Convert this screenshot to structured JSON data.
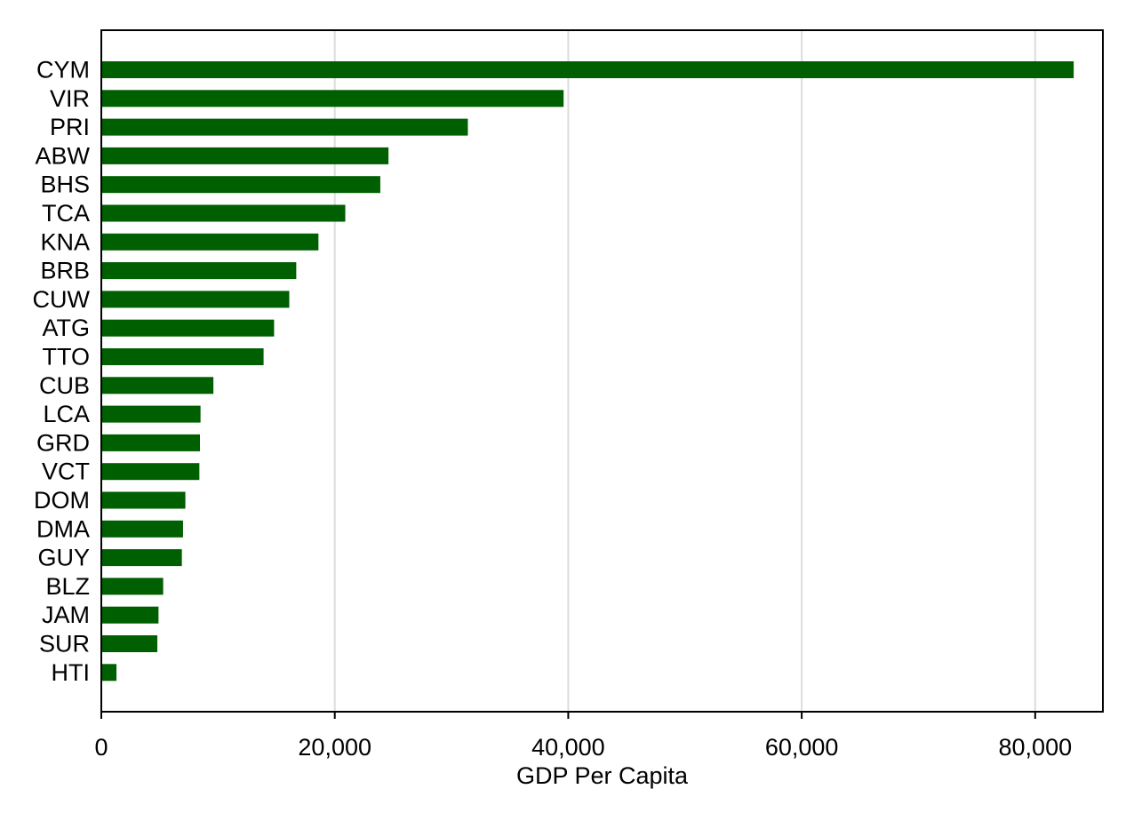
{
  "chart_data": {
    "type": "bar",
    "orientation": "horizontal",
    "title": "",
    "xlabel": "GDP Per Capita",
    "ylabel": "",
    "categories": [
      "CYM",
      "VIR",
      "PRI",
      "ABW",
      "BHS",
      "TCA",
      "KNA",
      "BRB",
      "CUW",
      "ATG",
      "TTO",
      "CUB",
      "LCA",
      "GRD",
      "VCT",
      "DOM",
      "DMA",
      "GUY",
      "BLZ",
      "JAM",
      "SUR",
      "HTI"
    ],
    "values": [
      83300,
      39600,
      31400,
      24600,
      23900,
      20900,
      18600,
      16700,
      16100,
      14800,
      13900,
      9600,
      8500,
      8450,
      8400,
      7200,
      7000,
      6900,
      5300,
      4900,
      4800,
      1300
    ],
    "xlim": [
      0,
      85800
    ],
    "xticks": [
      0,
      20000,
      40000,
      60000,
      80000
    ],
    "xtick_labels": [
      "0",
      "20,000",
      "40,000",
      "60,000",
      "80,000"
    ],
    "grid": "vertical",
    "legend": "none",
    "colors": {
      "bar": "#005f00",
      "grid": "#dddddd",
      "axis": "#000000"
    }
  }
}
